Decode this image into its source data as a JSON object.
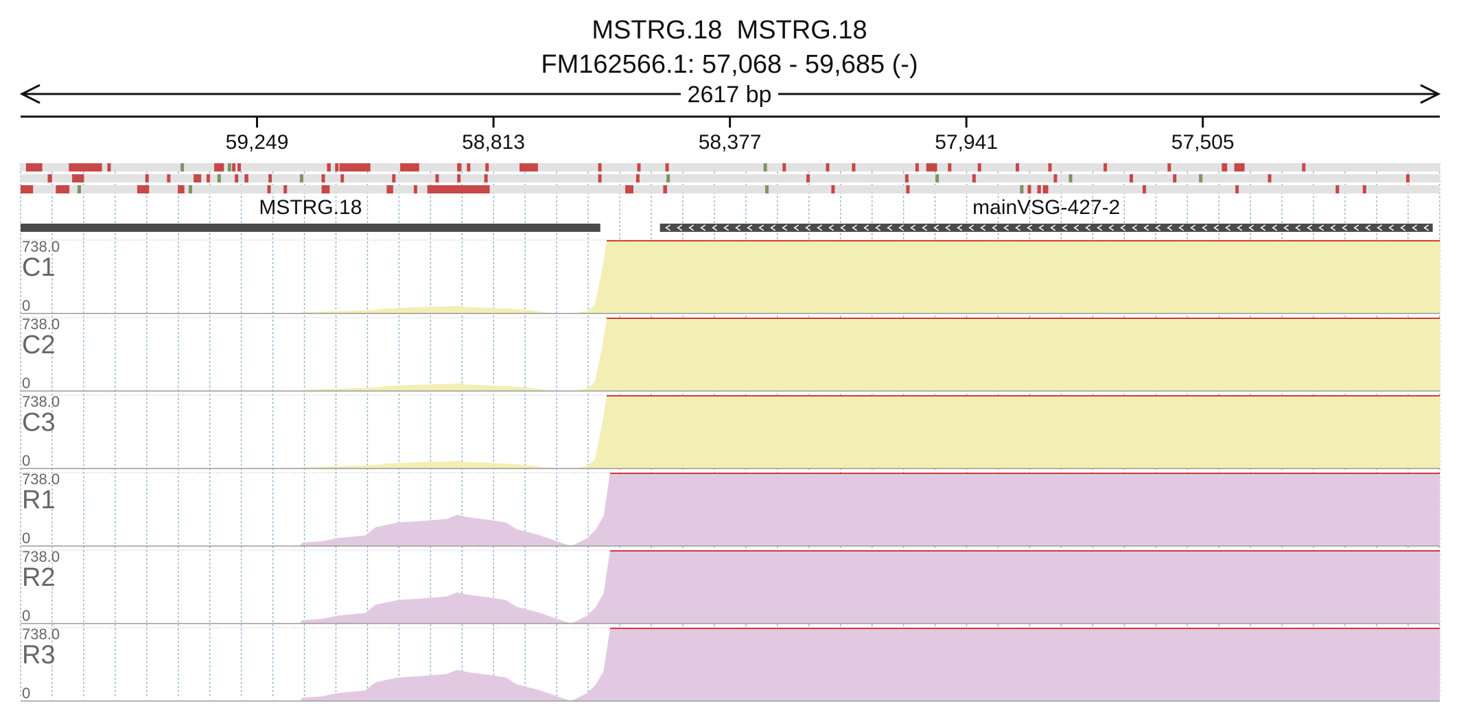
{
  "header": {
    "gene_ids": "MSTRG.18  MSTRG.18",
    "locus": "FM162566.1: 57,068 - 59,685 (-)",
    "span_label": "2617 bp"
  },
  "axis": {
    "ticks": [
      {
        "label": "59,249",
        "value": 59249
      },
      {
        "label": "58,813",
        "value": 58813
      },
      {
        "label": "58,377",
        "value": 58377
      },
      {
        "label": "57,941",
        "value": 57941
      },
      {
        "label": "57,505",
        "value": 57505
      }
    ]
  },
  "region": {
    "start": 57068,
    "end": 59685,
    "strand": "-"
  },
  "annotations": [
    {
      "label": "MSTRG.18",
      "start": 58616,
      "end": 59685,
      "style": "solid"
    },
    {
      "label": "mainVSG-427-2",
      "start": 57081,
      "end": 58506,
      "style": "arrow-reverse"
    }
  ],
  "coverage_tracks": [
    {
      "name": "C1",
      "max_label": "738.0",
      "min_label": "0",
      "group": "control"
    },
    {
      "name": "C2",
      "max_label": "738.0",
      "min_label": "0",
      "group": "control"
    },
    {
      "name": "C3",
      "max_label": "738.0",
      "min_label": "0",
      "group": "control"
    },
    {
      "name": "R1",
      "max_label": "738.0",
      "min_label": "0",
      "group": "treated"
    },
    {
      "name": "R2",
      "max_label": "738.0",
      "min_label": "0",
      "group": "treated"
    },
    {
      "name": "R3",
      "max_label": "738.0",
      "min_label": "0",
      "group": "treated"
    }
  ],
  "coverage_profiles": {
    "control": [
      [
        59685,
        0
      ],
      [
        59170,
        0
      ],
      [
        59166,
        12
      ],
      [
        59100,
        22
      ],
      [
        59035,
        34
      ],
      [
        59010,
        50
      ],
      [
        58980,
        56
      ],
      [
        58950,
        64
      ],
      [
        58890,
        72
      ],
      [
        58880,
        78
      ],
      [
        58860,
        64
      ],
      [
        58820,
        56
      ],
      [
        58780,
        46
      ],
      [
        58740,
        28
      ],
      [
        58720,
        12
      ],
      [
        58690,
        2
      ],
      [
        58670,
        0
      ],
      [
        58660,
        6
      ],
      [
        58640,
        24
      ],
      [
        58626,
        90
      ],
      [
        58612,
        460
      ],
      [
        58604,
        738
      ],
      [
        57068,
        738
      ]
    ],
    "treated": [
      [
        59685,
        0
      ],
      [
        59170,
        0
      ],
      [
        59166,
        34
      ],
      [
        59130,
        46
      ],
      [
        59100,
        80
      ],
      [
        59050,
        106
      ],
      [
        59030,
        190
      ],
      [
        58990,
        236
      ],
      [
        58950,
        250
      ],
      [
        58900,
        272
      ],
      [
        58880,
        314
      ],
      [
        58860,
        290
      ],
      [
        58820,
        262
      ],
      [
        58790,
        236
      ],
      [
        58770,
        168
      ],
      [
        58730,
        112
      ],
      [
        58700,
        56
      ],
      [
        58680,
        18
      ],
      [
        58670,
        4
      ],
      [
        58662,
        20
      ],
      [
        58640,
        80
      ],
      [
        58624,
        168
      ],
      [
        58610,
        300
      ],
      [
        58598,
        738
      ],
      [
        57068,
        738
      ]
    ]
  },
  "variant_rows": [
    [
      [
        59675,
        59645,
        "r"
      ],
      [
        59596,
        59535,
        "r"
      ],
      [
        59525,
        59520,
        "r"
      ],
      [
        59390,
        59385,
        "g"
      ],
      [
        59328,
        59310,
        "r"
      ],
      [
        59303,
        59299,
        "g"
      ],
      [
        59295,
        59290,
        "r"
      ],
      [
        59285,
        59280,
        "r"
      ],
      [
        59120,
        59113,
        "r"
      ],
      [
        59105,
        59100,
        "r"
      ],
      [
        59097,
        59040,
        "r"
      ],
      [
        58985,
        58950,
        "r"
      ],
      [
        58880,
        58872,
        "r"
      ],
      [
        58862,
        58857,
        "r"
      ],
      [
        58828,
        58823,
        "r"
      ],
      [
        58765,
        58731,
        "r"
      ],
      [
        58620,
        58615,
        "r"
      ],
      [
        58548,
        58543,
        "r"
      ],
      [
        58496,
        58491,
        "r"
      ],
      [
        58315,
        58310,
        "g"
      ],
      [
        58280,
        58275,
        "r"
      ],
      [
        58200,
        58195,
        "r"
      ],
      [
        58152,
        58147,
        "r"
      ],
      [
        58035,
        58030,
        "r"
      ],
      [
        58015,
        57995,
        "r"
      ],
      [
        57975,
        57970,
        "r"
      ],
      [
        57920,
        57915,
        "r"
      ],
      [
        57850,
        57845,
        "r"
      ],
      [
        57790,
        57785,
        "r"
      ],
      [
        57688,
        57683,
        "r"
      ],
      [
        57570,
        57565,
        "r"
      ],
      [
        57470,
        57460,
        "r"
      ],
      [
        57447,
        57428,
        "r"
      ],
      [
        57322,
        57317,
        "r"
      ]
    ],
    [
      [
        59635,
        59627,
        "r"
      ],
      [
        59590,
        59568,
        "r"
      ],
      [
        59455,
        59450,
        "r"
      ],
      [
        59415,
        59410,
        "r"
      ],
      [
        59366,
        59352,
        "r"
      ],
      [
        59342,
        59338,
        "r"
      ],
      [
        59322,
        59317,
        "g"
      ],
      [
        59290,
        59285,
        "r"
      ],
      [
        59272,
        59265,
        "r"
      ],
      [
        59228,
        59223,
        "r"
      ],
      [
        59170,
        59165,
        "g"
      ],
      [
        59130,
        59125,
        "r"
      ],
      [
        59095,
        59090,
        "r"
      ],
      [
        59000,
        58995,
        "r"
      ],
      [
        58920,
        58915,
        "r"
      ],
      [
        58880,
        58875,
        "r"
      ],
      [
        58830,
        58825,
        "r"
      ],
      [
        58620,
        58615,
        "r"
      ],
      [
        58550,
        58545,
        "r"
      ],
      [
        58494,
        58489,
        "g"
      ],
      [
        58236,
        58231,
        "r"
      ],
      [
        58054,
        58049,
        "r"
      ],
      [
        57998,
        57993,
        "g"
      ],
      [
        57930,
        57925,
        "r"
      ],
      [
        57780,
        57775,
        "r"
      ],
      [
        57752,
        57747,
        "g"
      ],
      [
        57640,
        57635,
        "r"
      ],
      [
        57560,
        57555,
        "r"
      ],
      [
        57512,
        57507,
        "g"
      ],
      [
        57385,
        57380,
        "r"
      ],
      [
        57130,
        57125,
        "r"
      ]
    ],
    [
      [
        59685,
        59662,
        "r"
      ],
      [
        59620,
        59595,
        "r"
      ],
      [
        59580,
        59575,
        "g"
      ],
      [
        59470,
        59448,
        "r"
      ],
      [
        59395,
        59383,
        "r"
      ],
      [
        59375,
        59370,
        "g"
      ],
      [
        59230,
        59225,
        "r"
      ],
      [
        59200,
        59195,
        "r"
      ],
      [
        59130,
        59115,
        "r"
      ],
      [
        59010,
        58998,
        "r"
      ],
      [
        58960,
        58955,
        "r"
      ],
      [
        58935,
        58820,
        "r"
      ],
      [
        58570,
        58555,
        "r"
      ],
      [
        58500,
        58493,
        "r"
      ],
      [
        58312,
        58307,
        "g"
      ],
      [
        58190,
        58185,
        "r"
      ],
      [
        58052,
        58047,
        "r"
      ],
      [
        57842,
        57837,
        "g"
      ],
      [
        57828,
        57823,
        "r"
      ],
      [
        57810,
        57805,
        "r"
      ],
      [
        57810,
        57805,
        "r"
      ],
      [
        57800,
        57790,
        "r"
      ],
      [
        57616,
        57611,
        "r"
      ],
      [
        57445,
        57440,
        "r"
      ],
      [
        57260,
        57255,
        "r"
      ],
      [
        57210,
        57205,
        "r"
      ]
    ]
  ],
  "colors": {
    "control_fill": "#f3eeb3",
    "treated_fill": "#e2c9e2",
    "max_line": "#d62728",
    "variant_ref": "#c84747",
    "variant_alt": "#7d9464",
    "variant_bg": "#e2e2e2",
    "annotation": "#4a4a4a",
    "grid": "#8bb3d6"
  }
}
